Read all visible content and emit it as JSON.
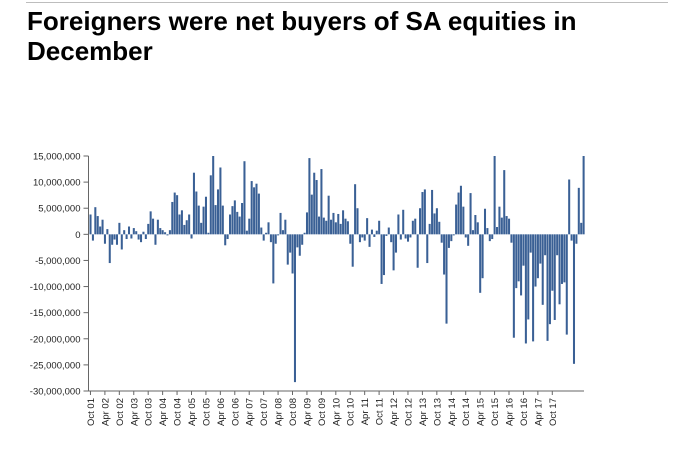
{
  "title": "Foreigners were net buyers of SA equities in December",
  "colors": {
    "bar": "#3a6095",
    "axis": "#666666",
    "text": "#222222"
  },
  "chart_data": {
    "type": "bar",
    "title": "Foreigners were net buyers of SA equities in December",
    "xlabel": "",
    "ylabel": "",
    "ylim": [
      -30000000,
      15000000
    ],
    "yticks": [
      {
        "value": 15000000,
        "label": "15,000,000"
      },
      {
        "value": 10000000,
        "label": "10,000,000"
      },
      {
        "value": 5000000,
        "label": "5,000,000"
      },
      {
        "value": 0,
        "label": "0"
      },
      {
        "value": -5000000,
        "label": "-5,000,000"
      },
      {
        "value": -10000000,
        "label": "-10,000,000"
      },
      {
        "value": -15000000,
        "label": "-15,000,000"
      },
      {
        "value": -20000000,
        "label": "-20,000,000"
      },
      {
        "value": -25000000,
        "label": "-25,000,000"
      },
      {
        "value": -30000000,
        "label": "-30,000,000"
      }
    ],
    "xticks": [
      {
        "index": 0,
        "label": "Oct 01"
      },
      {
        "index": 6,
        "label": "Apr 02"
      },
      {
        "index": 12,
        "label": "Oct 02"
      },
      {
        "index": 18,
        "label": "Apr 03"
      },
      {
        "index": 24,
        "label": "Oct 03"
      },
      {
        "index": 30,
        "label": "Apr 04"
      },
      {
        "index": 36,
        "label": "Oct 04"
      },
      {
        "index": 42,
        "label": "Apr 05"
      },
      {
        "index": 48,
        "label": "Oct 05"
      },
      {
        "index": 54,
        "label": "Apr 06"
      },
      {
        "index": 60,
        "label": "Oct 06"
      },
      {
        "index": 66,
        "label": "Apr 07"
      },
      {
        "index": 72,
        "label": "Oct 07"
      },
      {
        "index": 78,
        "label": "Apr 08"
      },
      {
        "index": 84,
        "label": "Oct 08"
      },
      {
        "index": 90,
        "label": "Apr 09"
      },
      {
        "index": 96,
        "label": "Oct 09"
      },
      {
        "index": 102,
        "label": "Apr 10"
      },
      {
        "index": 108,
        "label": "Oct 10"
      },
      {
        "index": 114,
        "label": "Apr 11"
      },
      {
        "index": 120,
        "label": "Oct 11"
      },
      {
        "index": 126,
        "label": "Apr 12"
      },
      {
        "index": 132,
        "label": "Oct 12"
      },
      {
        "index": 138,
        "label": "Apr 13"
      },
      {
        "index": 144,
        "label": "Oct 13"
      },
      {
        "index": 150,
        "label": "Apr 14"
      },
      {
        "index": 156,
        "label": "Oct 14"
      },
      {
        "index": 162,
        "label": "Apr 15"
      },
      {
        "index": 168,
        "label": "Oct 15"
      },
      {
        "index": 174,
        "label": "Apr 16"
      },
      {
        "index": 180,
        "label": "Oct 16"
      },
      {
        "index": 186,
        "label": "Apr 17"
      },
      {
        "index": 192,
        "label": "Oct 17"
      }
    ],
    "series": [
      {
        "values": [
          3800000,
          -1200000,
          5200000,
          3500000,
          1500000,
          2800000,
          -1800000,
          1000000,
          -5500000,
          -2000000,
          -1000000,
          -2000000,
          2200000,
          -2900000,
          800000,
          -900000,
          1500000,
          -800000,
          1200000,
          600000,
          -1000000,
          -1500000,
          500000,
          -900000,
          2000000,
          4400000,
          3000000,
          -2000000,
          2800000,
          1200000,
          800000,
          400000,
          -200000,
          800000,
          6200000,
          8000000,
          7500000,
          3800000,
          4600000,
          1800000,
          2700000,
          3800000,
          -800000,
          11800000,
          8200000,
          5500000,
          2200000,
          5300000,
          7200000,
          300000,
          11300000,
          15000000,
          5600000,
          8600000,
          12800000,
          5500000,
          -2100000,
          -900000,
          3800000,
          5400000,
          6500000,
          4300000,
          3400000,
          6000000,
          14000000,
          700000,
          3000000,
          10200000,
          9000000,
          9700000,
          7800000,
          1300000,
          -1200000,
          300000,
          2300000,
          -1500000,
          -9400000,
          -1800000,
          -200000,
          4100000,
          800000,
          2800000,
          -5800000,
          -3500000,
          -7500000,
          -28300000,
          -2500000,
          -4100000,
          -2000000,
          300000,
          4200000,
          14600000,
          7600000,
          11800000,
          10400000,
          3400000,
          12500000,
          3200000,
          2600000,
          7400000,
          2800000,
          4100000,
          2300000,
          3900000,
          2000000,
          4600000,
          3000000,
          2500000,
          -1800000,
          -6200000,
          9600000,
          5000000,
          -1500000,
          -600000,
          -1200000,
          3100000,
          -2400000,
          900000,
          -500000,
          700000,
          2600000,
          -9500000,
          -7800000,
          -300000,
          1300000,
          -1500000,
          -6900000,
          -3500000,
          3800000,
          -1000000,
          4700000,
          -800000,
          -1400000,
          -600000,
          2600000,
          3000000,
          -6400000,
          5000000,
          8100000,
          8600000,
          -5500000,
          2000000,
          8500000,
          4000000,
          5000000,
          2400000,
          -1600000,
          -7700000,
          -17100000,
          -2600000,
          -1300000,
          -200000,
          5700000,
          8000000,
          9300000,
          5300000,
          -600000,
          -2200000,
          7900000,
          800000,
          3700000,
          2300000,
          -11200000,
          -8400000,
          4900000,
          1200000,
          -1300000,
          -900000,
          15000000,
          1400000,
          5300000,
          3200000,
          12300000,
          3500000,
          3000000,
          -1600000,
          -19800000,
          -10300000,
          -9000000,
          -11700000,
          -6000000,
          -20900000,
          -16300000,
          -3500000,
          -20500000,
          -10000000,
          -8400000,
          -5600000,
          -13500000,
          -4000000,
          -20400000,
          -17200000,
          -10800000,
          -16400000,
          -4000000,
          -13400000,
          -9500000,
          -9200000,
          -19200000,
          10500000,
          -1200000,
          -24800000,
          -1800000,
          8900000,
          2200000,
          15000000
        ]
      }
    ]
  }
}
